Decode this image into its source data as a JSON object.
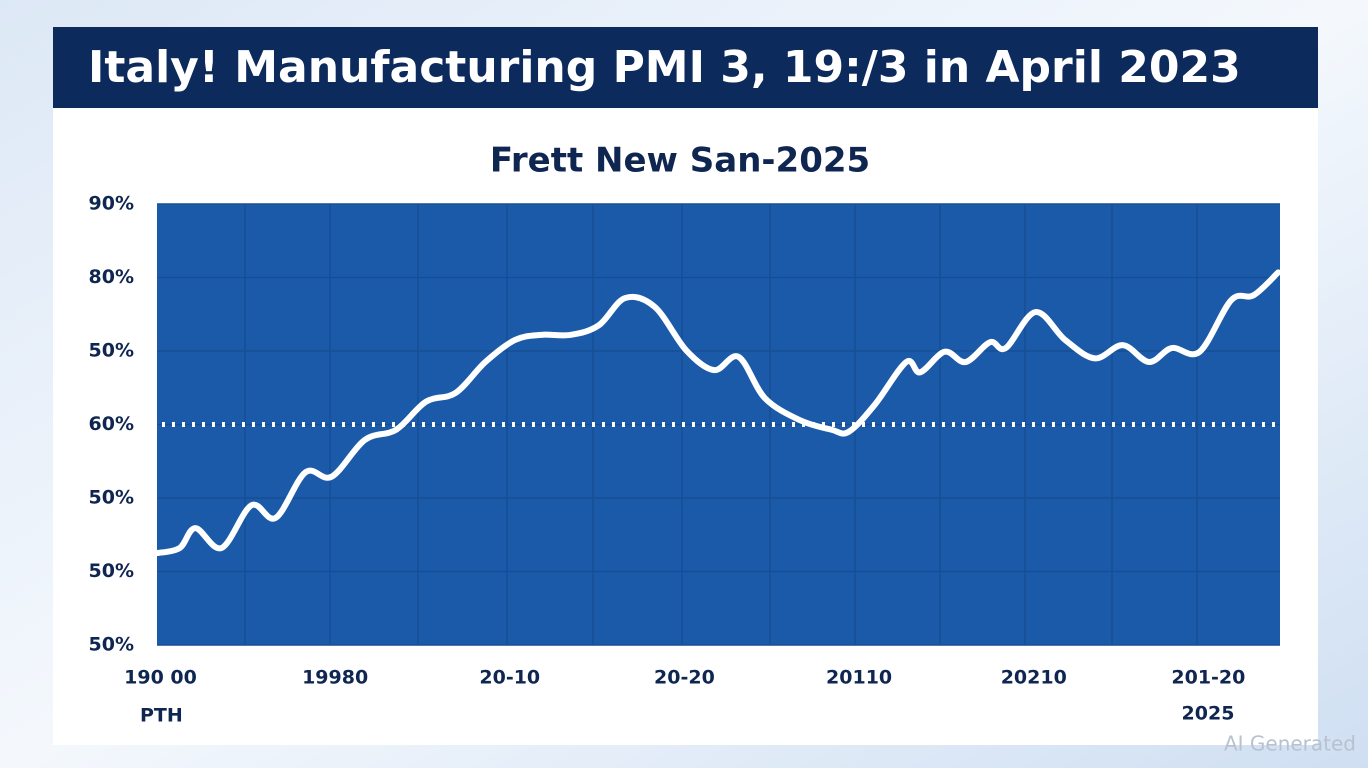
{
  "chart_data": {
    "type": "line",
    "title": "Italy! Manufacturing PMI 3, 19:/3 in April 2023",
    "subtitle": "Frett New San-2025",
    "x": [
      -0.02,
      0.11,
      0.2,
      0.35,
      0.52,
      0.66,
      0.83,
      0.98,
      1.17,
      1.35,
      1.52,
      1.69,
      1.86,
      2.03,
      2.18,
      2.35,
      2.51,
      2.66,
      2.83,
      3.01,
      3.17,
      3.31,
      3.46,
      3.66,
      3.84,
      3.94,
      4.09,
      4.27,
      4.35,
      4.49,
      4.61,
      4.75,
      4.84,
      5.01,
      5.18,
      5.35,
      5.51,
      5.66,
      5.79,
      5.95,
      6.13,
      6.26,
      6.4
    ],
    "series": [
      {
        "color": "#ffffff",
        "values": [
          1.25,
          1.32,
          1.59,
          1.32,
          1.9,
          1.73,
          2.35,
          2.29,
          2.79,
          2.93,
          3.31,
          3.43,
          3.85,
          4.15,
          4.22,
          4.22,
          4.35,
          4.72,
          4.6,
          4.01,
          3.74,
          3.92,
          3.36,
          3.06,
          2.93,
          2.9,
          3.27,
          3.85,
          3.71,
          3.99,
          3.85,
          4.12,
          4.04,
          4.53,
          4.15,
          3.9,
          4.08,
          3.85,
          4.04,
          3.99,
          4.69,
          4.76,
          5.07
        ]
      }
    ],
    "xlim": [
      -0.02,
      6.41
    ],
    "xticks": [
      {
        "value": 0,
        "label": "190 00"
      },
      {
        "value": 1,
        "label": "19980"
      },
      {
        "value": 2,
        "label": "20-10"
      },
      {
        "value": 3,
        "label": "20-20"
      },
      {
        "value": 4,
        "label": "20110"
      },
      {
        "value": 5,
        "label": "20210"
      },
      {
        "value": 6,
        "label": "201-20"
      }
    ],
    "ylim": [
      0,
      6
    ],
    "yticks": [
      {
        "value": 0,
        "label": "50%"
      },
      {
        "value": 1,
        "label": "50%"
      },
      {
        "value": 2,
        "label": "50%"
      },
      {
        "value": 3,
        "label": "60%"
      },
      {
        "value": 4,
        "label": "50%"
      },
      {
        "value": 5,
        "label": "80%"
      },
      {
        "value": 6,
        "label": "90%"
      }
    ],
    "reference_line": 3,
    "grid": true,
    "annotations": [
      "PTH",
      "2025"
    ],
    "watermark": "AI Generated"
  }
}
